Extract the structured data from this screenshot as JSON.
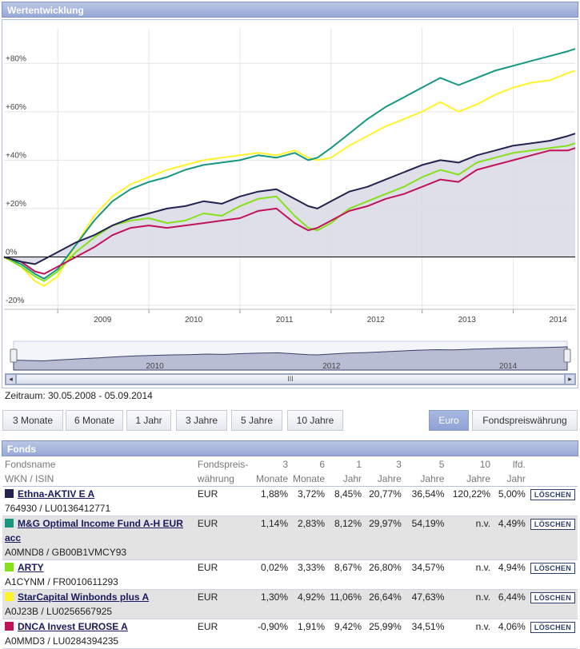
{
  "header_title": "Wertentwicklung",
  "period": "Zeitraum: 30.05.2008 - 05.09.2014",
  "buttons": [
    "3 Monate",
    "6 Monate",
    "1 Jahr",
    "3 Jahre",
    "5 Jahre",
    "10 Jahre"
  ],
  "currency_buttons": {
    "euro": "Euro",
    "fund": "Fondspreiswährung"
  },
  "scroll_thumb_label": "III",
  "funds_title": "Fonds",
  "table": {
    "headers": {
      "name_1": "Fondsname",
      "name_2": "WKN / ISIN",
      "cur_1": "Fondspreis-",
      "cur_2": "währung",
      "m3_1": "3",
      "m3_2": "Monate",
      "m6_1": "6",
      "m6_2": "Monate",
      "y1_1": "1",
      "y1_2": "Jahr",
      "y3_1": "3",
      "y3_2": "Jahre",
      "y5_1": "5",
      "y5_2": "Jahre",
      "y10_1": "10",
      "y10_2": "Jahre",
      "cur_y_1": "lfd.",
      "cur_y_2": "Jahr"
    },
    "rows": [
      {
        "name": "Ethna-AKTIV E A",
        "id": "764930 / LU0136412771",
        "currency": "EUR",
        "m3": "1,88%",
        "m6": "3,72%",
        "y1": "8,45%",
        "y3": "20,77%",
        "y5": "36,54%",
        "y10": "120,22%",
        "ytd": "5,00%",
        "color": "#22244f",
        "action": "LÖSCHEN"
      },
      {
        "name": "M&G Optimal Income Fund A-H EUR acc",
        "id": "A0MND8 / GB00B1VMCY93",
        "currency": "EUR",
        "m3": "1,14%",
        "m6": "2,83%",
        "y1": "8,12%",
        "y3": "29,97%",
        "y5": "54,19%",
        "y10": "n.v.",
        "ytd": "4,49%",
        "color": "#15977f",
        "action": "LÖSCHEN"
      },
      {
        "name": "ARTY",
        "id": "A1CYNM / FR0010611293",
        "currency": "EUR",
        "m3": "0,02%",
        "m6": "3,33%",
        "y1": "8,67%",
        "y3": "26,80%",
        "y5": "34,57%",
        "y10": "n.v.",
        "ytd": "4,94%",
        "color": "#86e01a",
        "action": "LÖSCHEN"
      },
      {
        "name": "StarCapital Winbonds plus A",
        "id": "A0J23B / LU0256567925",
        "currency": "EUR",
        "m3": "1,30%",
        "m6": "4,92%",
        "y1": "11,06%",
        "y3": "26,64%",
        "y5": "47,63%",
        "y10": "n.v.",
        "ytd": "6,44%",
        "color": "#fff32a",
        "action": "LÖSCHEN"
      },
      {
        "name": "DNCA Invest EUROSE A",
        "id": "A0MMD3 / LU0284394235",
        "currency": "EUR",
        "m3": "-0,90%",
        "m6": "1,91%",
        "y1": "9,42%",
        "y3": "25,99%",
        "y5": "34,51%",
        "y10": "n.v.",
        "ytd": "4,06%",
        "color": "#c2125a",
        "action": "LÖSCHEN"
      }
    ]
  },
  "chart_data": {
    "type": "line",
    "xlim": [
      2008.41,
      2014.68
    ],
    "ylim": [
      -20,
      90
    ],
    "yticks": [
      -20,
      0,
      20,
      40,
      60,
      80
    ],
    "ytick_labels": [
      "-20%",
      "0%",
      "+20%",
      "+40%",
      "+60%",
      "+80%"
    ],
    "xtick_labels": [
      "2009",
      "2010",
      "2011",
      "2012",
      "2013",
      "2014"
    ],
    "nav_xtick_labels": [
      "2010",
      "2012",
      "2014"
    ],
    "grid": true,
    "shaded_series": "Ethna-AKTIV E A",
    "series": [
      {
        "name": "Ethna-AKTIV E A",
        "color": "#22244f",
        "points": [
          [
            2008.41,
            0
          ],
          [
            2008.6,
            -2
          ],
          [
            2008.75,
            -3
          ],
          [
            2008.85,
            -1
          ],
          [
            2009.0,
            2
          ],
          [
            2009.2,
            6
          ],
          [
            2009.4,
            9
          ],
          [
            2009.6,
            13
          ],
          [
            2009.8,
            16
          ],
          [
            2010.0,
            18
          ],
          [
            2010.2,
            20
          ],
          [
            2010.4,
            21
          ],
          [
            2010.6,
            23
          ],
          [
            2010.8,
            22
          ],
          [
            2011.0,
            25
          ],
          [
            2011.2,
            27
          ],
          [
            2011.4,
            28
          ],
          [
            2011.6,
            24
          ],
          [
            2011.75,
            21
          ],
          [
            2011.85,
            20
          ],
          [
            2012.0,
            23
          ],
          [
            2012.2,
            27
          ],
          [
            2012.4,
            29
          ],
          [
            2012.6,
            32
          ],
          [
            2012.8,
            35
          ],
          [
            2013.0,
            38
          ],
          [
            2013.2,
            40
          ],
          [
            2013.4,
            39
          ],
          [
            2013.6,
            42
          ],
          [
            2013.8,
            44
          ],
          [
            2014.0,
            46
          ],
          [
            2014.2,
            47
          ],
          [
            2014.4,
            48
          ],
          [
            2014.6,
            50
          ],
          [
            2014.68,
            51
          ]
        ]
      },
      {
        "name": "M&G Optimal Income Fund A-H EUR acc",
        "color": "#15977f",
        "points": [
          [
            2008.41,
            0
          ],
          [
            2008.6,
            -3
          ],
          [
            2008.75,
            -7
          ],
          [
            2008.85,
            -9
          ],
          [
            2009.0,
            -5
          ],
          [
            2009.2,
            5
          ],
          [
            2009.4,
            15
          ],
          [
            2009.6,
            23
          ],
          [
            2009.8,
            28
          ],
          [
            2010.0,
            31
          ],
          [
            2010.2,
            33
          ],
          [
            2010.4,
            36
          ],
          [
            2010.6,
            38
          ],
          [
            2010.8,
            39
          ],
          [
            2011.0,
            40
          ],
          [
            2011.2,
            42
          ],
          [
            2011.4,
            41
          ],
          [
            2011.6,
            43
          ],
          [
            2011.75,
            40
          ],
          [
            2011.85,
            41
          ],
          [
            2012.0,
            45
          ],
          [
            2012.2,
            51
          ],
          [
            2012.4,
            57
          ],
          [
            2012.6,
            62
          ],
          [
            2012.8,
            66
          ],
          [
            2013.0,
            70
          ],
          [
            2013.2,
            74
          ],
          [
            2013.4,
            71
          ],
          [
            2013.6,
            74
          ],
          [
            2013.8,
            77
          ],
          [
            2014.0,
            79
          ],
          [
            2014.2,
            81
          ],
          [
            2014.4,
            83
          ],
          [
            2014.6,
            85
          ],
          [
            2014.68,
            86
          ]
        ]
      },
      {
        "name": "ARTY",
        "color": "#86e01a",
        "points": [
          [
            2008.41,
            0
          ],
          [
            2008.6,
            -4
          ],
          [
            2008.75,
            -8
          ],
          [
            2008.85,
            -10
          ],
          [
            2009.0,
            -6
          ],
          [
            2009.2,
            2
          ],
          [
            2009.4,
            8
          ],
          [
            2009.6,
            13
          ],
          [
            2009.8,
            15
          ],
          [
            2010.0,
            16
          ],
          [
            2010.2,
            14
          ],
          [
            2010.4,
            15
          ],
          [
            2010.6,
            18
          ],
          [
            2010.8,
            17
          ],
          [
            2011.0,
            21
          ],
          [
            2011.2,
            24
          ],
          [
            2011.4,
            25
          ],
          [
            2011.6,
            17
          ],
          [
            2011.75,
            12
          ],
          [
            2011.85,
            11
          ],
          [
            2012.0,
            14
          ],
          [
            2012.2,
            20
          ],
          [
            2012.4,
            23
          ],
          [
            2012.6,
            26
          ],
          [
            2012.8,
            29
          ],
          [
            2013.0,
            33
          ],
          [
            2013.2,
            36
          ],
          [
            2013.4,
            34
          ],
          [
            2013.6,
            39
          ],
          [
            2013.8,
            41
          ],
          [
            2014.0,
            43
          ],
          [
            2014.2,
            44
          ],
          [
            2014.4,
            45
          ],
          [
            2014.6,
            46
          ],
          [
            2014.68,
            47
          ]
        ]
      },
      {
        "name": "StarCapital Winbonds plus A",
        "color": "#fff32a",
        "points": [
          [
            2008.41,
            0
          ],
          [
            2008.6,
            -4
          ],
          [
            2008.75,
            -10
          ],
          [
            2008.85,
            -12
          ],
          [
            2009.0,
            -8
          ],
          [
            2009.2,
            5
          ],
          [
            2009.4,
            17
          ],
          [
            2009.6,
            25
          ],
          [
            2009.8,
            30
          ],
          [
            2010.0,
            33
          ],
          [
            2010.2,
            36
          ],
          [
            2010.4,
            38
          ],
          [
            2010.6,
            40
          ],
          [
            2010.8,
            41
          ],
          [
            2011.0,
            42
          ],
          [
            2011.2,
            43
          ],
          [
            2011.4,
            42
          ],
          [
            2011.6,
            44
          ],
          [
            2011.75,
            41
          ],
          [
            2011.85,
            40
          ],
          [
            2012.0,
            41
          ],
          [
            2012.2,
            46
          ],
          [
            2012.4,
            50
          ],
          [
            2012.6,
            54
          ],
          [
            2012.8,
            57
          ],
          [
            2013.0,
            60
          ],
          [
            2013.2,
            64
          ],
          [
            2013.4,
            60
          ],
          [
            2013.6,
            63
          ],
          [
            2013.8,
            67
          ],
          [
            2014.0,
            70
          ],
          [
            2014.2,
            72
          ],
          [
            2014.4,
            73
          ],
          [
            2014.6,
            76
          ],
          [
            2014.68,
            77
          ]
        ]
      },
      {
        "name": "DNCA Invest EUROSE A",
        "color": "#c2125a",
        "points": [
          [
            2008.41,
            0
          ],
          [
            2008.6,
            -2
          ],
          [
            2008.75,
            -6
          ],
          [
            2008.85,
            -7
          ],
          [
            2009.0,
            -4
          ],
          [
            2009.2,
            0
          ],
          [
            2009.4,
            4
          ],
          [
            2009.6,
            9
          ],
          [
            2009.8,
            12
          ],
          [
            2010.0,
            13
          ],
          [
            2010.2,
            12
          ],
          [
            2010.4,
            13
          ],
          [
            2010.6,
            14
          ],
          [
            2010.8,
            15
          ],
          [
            2011.0,
            16
          ],
          [
            2011.2,
            19
          ],
          [
            2011.4,
            20
          ],
          [
            2011.6,
            14
          ],
          [
            2011.75,
            11
          ],
          [
            2011.85,
            12
          ],
          [
            2012.0,
            15
          ],
          [
            2012.2,
            19
          ],
          [
            2012.4,
            21
          ],
          [
            2012.6,
            24
          ],
          [
            2012.8,
            26
          ],
          [
            2013.0,
            29
          ],
          [
            2013.2,
            32
          ],
          [
            2013.4,
            31
          ],
          [
            2013.6,
            36
          ],
          [
            2013.8,
            38
          ],
          [
            2014.0,
            40
          ],
          [
            2014.2,
            42
          ],
          [
            2014.4,
            44
          ],
          [
            2014.6,
            44
          ],
          [
            2014.68,
            45
          ]
        ]
      }
    ]
  }
}
